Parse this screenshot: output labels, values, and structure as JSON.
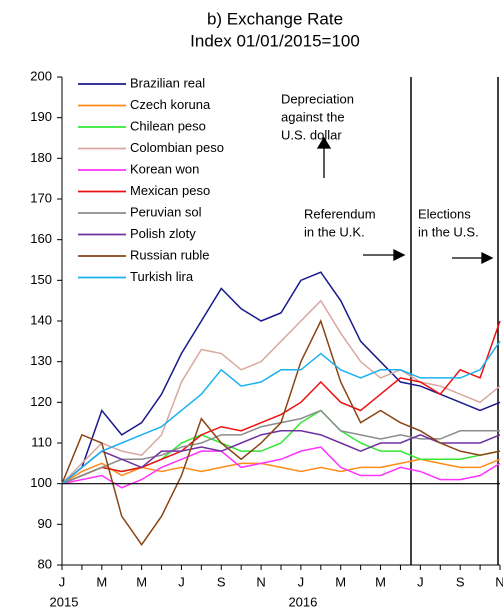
{
  "chart_data": {
    "type": "line",
    "title": "b) Exchange Rate",
    "subtitle": "Index 01/01/2015=100",
    "categories": [
      "J",
      null,
      "M",
      null,
      "M",
      null,
      "J",
      null,
      "S",
      null,
      "N",
      null,
      "J",
      null,
      "M",
      null,
      "M",
      null,
      "J",
      null,
      "S",
      null,
      "N"
    ],
    "year_labels": [
      "2015",
      "2016"
    ],
    "ylim": [
      80,
      200
    ],
    "yticks": [
      80,
      90,
      100,
      110,
      120,
      130,
      140,
      150,
      160,
      170,
      180,
      190,
      200
    ],
    "hline": 100,
    "annotations": [
      {
        "lines": [
          "Depreciation",
          "against the",
          "U.S. dollar"
        ]
      },
      {
        "lines": [
          "Referendum",
          "in the U.K."
        ]
      },
      {
        "lines": [
          "Elections",
          "in the U.S."
        ]
      }
    ],
    "series": [
      {
        "name": "Brazilian real",
        "color": "#1a1a8c",
        "values": [
          100,
          104,
          118,
          112,
          115,
          122,
          132,
          140,
          148,
          143,
          140,
          142,
          150,
          152,
          145,
          135,
          130,
          125,
          124,
          122,
          120,
          118,
          120
        ]
      },
      {
        "name": "Czech koruna",
        "color": "#ff8c1a",
        "values": [
          100,
          103,
          105,
          102,
          104,
          103,
          104,
          103,
          104,
          105,
          105,
          104,
          103,
          104,
          103,
          104,
          104,
          105,
          106,
          105,
          104,
          104,
          106
        ]
      },
      {
        "name": "Chilean peso",
        "color": "#33e833",
        "values": [
          100,
          102,
          104,
          103,
          104,
          106,
          110,
          112,
          110,
          108,
          108,
          110,
          115,
          118,
          113,
          110,
          108,
          108,
          106,
          106,
          106,
          107,
          108
        ]
      },
      {
        "name": "Colombian peso",
        "color": "#d8a8a0",
        "values": [
          100,
          105,
          110,
          108,
          107,
          112,
          125,
          133,
          132,
          128,
          130,
          135,
          140,
          145,
          137,
          130,
          126,
          128,
          125,
          124,
          122,
          120,
          124
        ]
      },
      {
        "name": "Korean won",
        "color": "#ff33ff",
        "values": [
          100,
          101,
          102,
          99,
          101,
          104,
          106,
          108,
          108,
          104,
          105,
          106,
          108,
          109,
          104,
          102,
          102,
          104,
          103,
          101,
          101,
          102,
          105
        ]
      },
      {
        "name": "Mexican peso",
        "color": "#ee1111",
        "values": [
          100,
          102,
          104,
          103,
          104,
          106,
          108,
          112,
          114,
          113,
          115,
          117,
          120,
          125,
          120,
          118,
          122,
          126,
          125,
          122,
          128,
          126,
          140
        ]
      },
      {
        "name": "Peruvian sol",
        "color": "#8c8c8c",
        "values": [
          100,
          102,
          104,
          106,
          106,
          107,
          109,
          110,
          112,
          112,
          114,
          115,
          116,
          118,
          113,
          112,
          111,
          112,
          111,
          111,
          113,
          113,
          113
        ]
      },
      {
        "name": "Polish zloty",
        "color": "#7030a0",
        "values": [
          100,
          104,
          108,
          106,
          104,
          108,
          108,
          109,
          108,
          110,
          112,
          113,
          113,
          112,
          110,
          108,
          110,
          110,
          112,
          110,
          110,
          110,
          112
        ]
      },
      {
        "name": "Russian ruble",
        "color": "#8b4513",
        "values": [
          100,
          112,
          110,
          92,
          85,
          92,
          102,
          116,
          110,
          106,
          110,
          115,
          130,
          140,
          125,
          115,
          118,
          115,
          113,
          110,
          108,
          107,
          108
        ]
      },
      {
        "name": "Turkish lira",
        "color": "#1ab2ee",
        "values": [
          100,
          104,
          108,
          110,
          112,
          114,
          118,
          122,
          128,
          124,
          125,
          128,
          128,
          132,
          128,
          126,
          128,
          128,
          126,
          126,
          126,
          128,
          135
        ]
      }
    ]
  }
}
